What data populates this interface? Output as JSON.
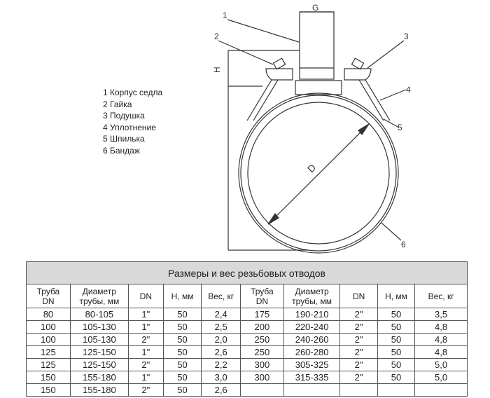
{
  "drawing": {
    "labels": {
      "g": "G",
      "h": "H",
      "d": "D",
      "callouts": [
        "1",
        "2",
        "3",
        "4",
        "5",
        "6"
      ]
    }
  },
  "legend": [
    "1 Корпус седла",
    "2 Гайка",
    "3 Подушка",
    "4 Уплотнение",
    "5 Шпилька",
    "6 Бандаж"
  ],
  "table": {
    "title": "Размеры и вес резьбовых отводов",
    "headers": [
      [
        "Труба",
        "DN"
      ],
      [
        "Диаметр",
        "трубы, мм"
      ],
      [
        "DN"
      ],
      [
        "H, мм"
      ],
      [
        "Вес, кг"
      ],
      [
        "Труба",
        "DN"
      ],
      [
        "Диаметр",
        "трубы, мм"
      ],
      [
        "DN"
      ],
      [
        "H, мм"
      ],
      [
        "Вес, кг"
      ]
    ],
    "rows": [
      [
        "80",
        "80-105",
        "1\"",
        "50",
        "2,4",
        "175",
        "190-210",
        "2\"",
        "50",
        "3,5"
      ],
      [
        "100",
        "105-130",
        "1\"",
        "50",
        "2,5",
        "200",
        "220-240",
        "2\"",
        "50",
        "4,8"
      ],
      [
        "100",
        "105-130",
        "2\"",
        "50",
        "2,0",
        "250",
        "240-260",
        "2\"",
        "50",
        "4,8"
      ],
      [
        "125",
        "125-150",
        "1\"",
        "50",
        "2,6",
        "250",
        "260-280",
        "2\"",
        "50",
        "4,8"
      ],
      [
        "125",
        "125-150",
        "2\"",
        "50",
        "2,2",
        "300",
        "305-325",
        "2\"",
        "50",
        "5,0"
      ],
      [
        "150",
        "155-180",
        "1\"",
        "50",
        "3,0",
        "300",
        "315-335",
        "2\"",
        "50",
        "5,0"
      ],
      [
        "150",
        "155-180",
        "2\"",
        "50",
        "2,6",
        "",
        "",
        "",
        "",
        ""
      ]
    ]
  }
}
